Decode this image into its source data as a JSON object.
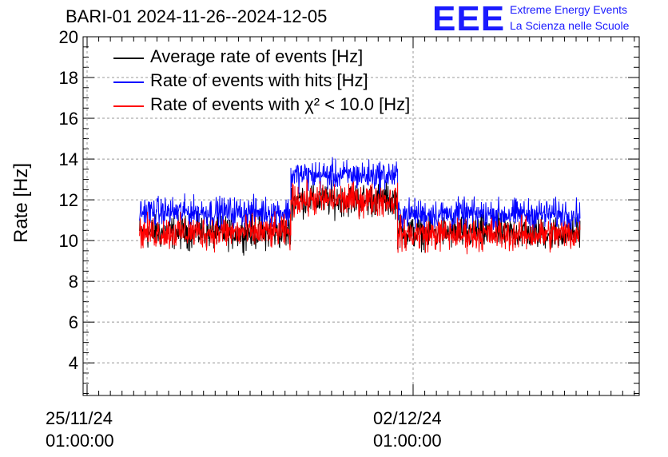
{
  "header": {
    "title": "BARI-01 2024-11-26--2024-12-05",
    "logo_text": "EEE",
    "logo_line1": "Extreme Energy Events",
    "logo_line2": "La Scienza nelle Scuole"
  },
  "chart_data": {
    "type": "line",
    "title": "BARI-01 2024-11-26--2024-12-05",
    "xlabel": "",
    "ylabel": "Rate [Hz]",
    "ylim": [
      2.4,
      20
    ],
    "yticks": [
      4,
      6,
      8,
      10,
      12,
      14,
      16,
      18,
      20
    ],
    "ytick_labels": [
      "4",
      "6",
      "8",
      "10",
      "12",
      "14",
      "16",
      "18",
      "20"
    ],
    "x_ticks": [
      {
        "date": "25/11/24",
        "time": "01:00:00"
      },
      {
        "date": "02/12/24",
        "time": "01:00:00"
      }
    ],
    "grid": true,
    "legend_position": "top-left",
    "segments": [
      {
        "start": "2024-11-26 04:00",
        "end": "2024-11-29 10:00"
      },
      {
        "start": "2024-11-29 10:00",
        "end": "2024-12-01 17:00"
      },
      {
        "start": "2024-12-01 17:00",
        "end": "2024-12-05 15:00"
      }
    ],
    "series": [
      {
        "name": "Average rate of events [Hz]",
        "color": "#000000",
        "levels": [
          10.4,
          12.0,
          10.4
        ],
        "noise": 0.5
      },
      {
        "name": "Rate of events with hits [Hz]",
        "color": "#0000ff",
        "levels": [
          11.4,
          13.2,
          11.3
        ],
        "noise": 0.45
      },
      {
        "name": "Rate of events with χ² < 10.0 [Hz]",
        "color": "#ff0000",
        "levels": [
          10.4,
          12.0,
          10.3
        ],
        "noise": 0.5
      }
    ]
  }
}
